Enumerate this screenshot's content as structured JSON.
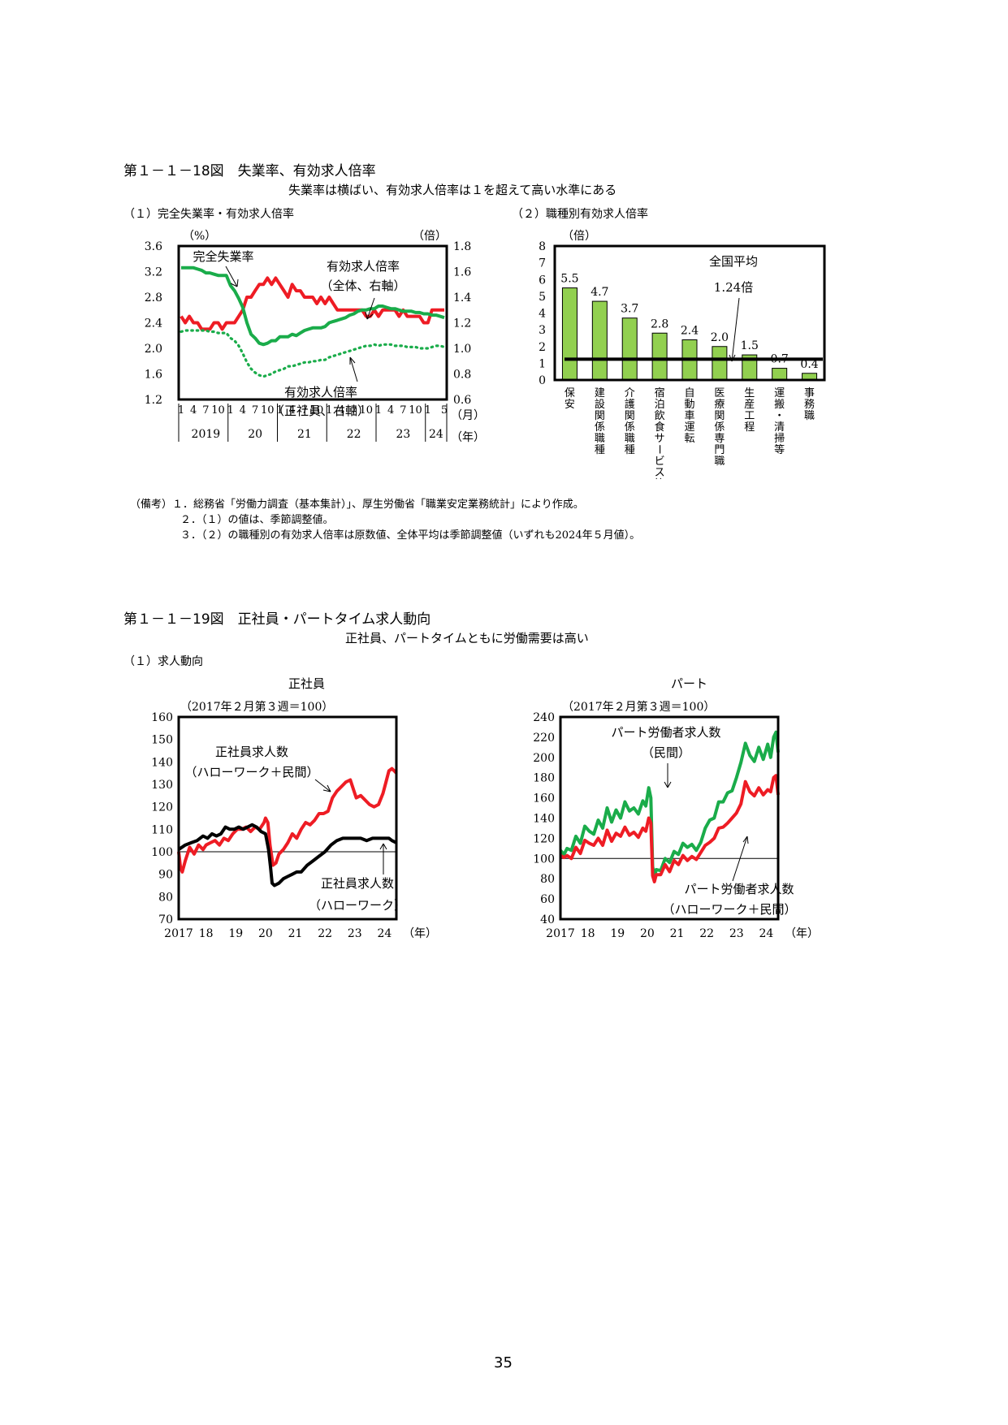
{
  "fig18": {
    "title": "第１－１－18図　失業率、有効求人倍率",
    "subtitle": "失業率は横ばい、有効求人倍率は１を超えて高い水準にある",
    "panel1_title": "（１）完全失業率・有効求人倍率",
    "panel2_title": "（２）職種別有効求人倍率"
  },
  "fig19": {
    "title": "第１－１－19図　正社員・パートタイム求人動向",
    "subtitle": "正社員、パートタイムともに労働需要は高い",
    "panel1_title": "（１）求人動向",
    "left_title": "正社員",
    "right_title": "パート"
  },
  "notes": [
    "（備考）１．総務省「労働力調査（基本集計）」、厚生労働省「職業安定業務統計」により作成。",
    "２．（１）の値は、季節調整値。",
    "３．（２）の職種別の有効求人倍率は原数値、全体平均は季節調整値（いずれも2024年５月値）。"
  ],
  "page_number": "35",
  "colors": {
    "red": "#ee1c24",
    "green": "#1aac4a",
    "black": "#000000",
    "bar": "#92d050"
  },
  "chart_data": [
    {
      "id": "unemployment-jobs-ratio",
      "type": "line",
      "y_left_unit": "（%）",
      "y_right_unit": "（倍）",
      "ylim_left": [
        1.2,
        3.6
      ],
      "ylim_right": [
        0.6,
        1.8
      ],
      "yticks_left": [
        "3.6",
        "3.2",
        "2.8",
        "2.4",
        "2.0",
        "1.6",
        "1.2"
      ],
      "yticks_right": [
        "1.8",
        "1.6",
        "1.4",
        "1.2",
        "1.0",
        "0.8",
        "0.6"
      ],
      "month_ticks": [
        "1",
        "4",
        "7",
        "10",
        "1",
        "4",
        "7",
        "10",
        "1",
        "4",
        "7",
        "10",
        "1",
        "4",
        "7",
        "10",
        "1",
        "4",
        "7",
        "10",
        "1",
        "5"
      ],
      "years": [
        "2019",
        "20",
        "21",
        "22",
        "23",
        "24"
      ],
      "month_unit": "（月）",
      "year_unit": "（年）",
      "x_start": "2019-01",
      "x_end": "2024-05",
      "series": [
        {
          "name": "完全失業率",
          "axis": "left",
          "color": "#ee1c24",
          "values": [
            2.5,
            2.4,
            2.5,
            2.4,
            2.4,
            2.3,
            2.3,
            2.3,
            2.4,
            2.4,
            2.3,
            2.4,
            2.4,
            2.4,
            2.5,
            2.6,
            2.8,
            2.8,
            2.9,
            3.0,
            3.0,
            3.1,
            3.0,
            3.1,
            3.0,
            2.9,
            2.8,
            3.0,
            2.9,
            2.9,
            2.8,
            2.8,
            2.8,
            2.7,
            2.8,
            2.7,
            2.8,
            2.7,
            2.6,
            2.6,
            2.6,
            2.6,
            2.6,
            2.6,
            2.6,
            2.5,
            2.5,
            2.6,
            2.5,
            2.6,
            2.6,
            2.6,
            2.6,
            2.5,
            2.6,
            2.5,
            2.5,
            2.5,
            2.5,
            2.4,
            2.4,
            2.6,
            2.6,
            2.6,
            2.6
          ]
        },
        {
          "name": "有効求人倍率（全体、右軸）",
          "axis": "right",
          "color": "#1aac4a",
          "values": [
            1.63,
            1.63,
            1.63,
            1.63,
            1.62,
            1.61,
            1.59,
            1.59,
            1.58,
            1.57,
            1.57,
            1.57,
            1.49,
            1.45,
            1.39,
            1.32,
            1.2,
            1.11,
            1.08,
            1.04,
            1.03,
            1.04,
            1.06,
            1.06,
            1.09,
            1.09,
            1.09,
            1.11,
            1.1,
            1.12,
            1.14,
            1.15,
            1.16,
            1.16,
            1.16,
            1.17,
            1.2,
            1.21,
            1.22,
            1.23,
            1.24,
            1.26,
            1.27,
            1.29,
            1.3,
            1.3,
            1.31,
            1.31,
            1.33,
            1.33,
            1.32,
            1.31,
            1.31,
            1.3,
            1.29,
            1.29,
            1.29,
            1.28,
            1.28,
            1.27,
            1.27,
            1.26,
            1.26,
            1.25,
            1.24
          ]
        },
        {
          "name": "有効求人倍率（正社員、右軸）",
          "axis": "right",
          "color": "#1aac4a",
          "dotted": true,
          "values": [
            1.13,
            1.14,
            1.14,
            1.14,
            1.14,
            1.14,
            1.14,
            1.13,
            1.13,
            1.12,
            1.12,
            1.12,
            1.08,
            1.06,
            1.02,
            0.96,
            0.89,
            0.84,
            0.81,
            0.79,
            0.78,
            0.79,
            0.8,
            0.82,
            0.83,
            0.84,
            0.86,
            0.86,
            0.87,
            0.88,
            0.89,
            0.89,
            0.9,
            0.9,
            0.91,
            0.91,
            0.93,
            0.94,
            0.95,
            0.96,
            0.97,
            0.98,
            0.99,
            1.0,
            1.01,
            1.02,
            1.02,
            1.03,
            1.02,
            1.03,
            1.03,
            1.03,
            1.02,
            1.02,
            1.02,
            1.01,
            1.01,
            1.01,
            1.0,
            1.0,
            1.0,
            1.01,
            1.02,
            1.02,
            1.01
          ]
        }
      ],
      "annotations": {
        "unemp": "完全失業率",
        "total_1": "有効求人倍率",
        "total_2": "（全体、右軸）",
        "regular_1": "有効求人倍率",
        "regular_2": "（正社員、右軸）"
      }
    },
    {
      "id": "occupation-ratio",
      "type": "bar",
      "y_unit": "（倍）",
      "ylim": [
        0,
        8
      ],
      "yticks": [
        "8",
        "7",
        "6",
        "5",
        "4",
        "3",
        "2",
        "1",
        "0"
      ],
      "categories": [
        "保安",
        "建設関係職種",
        "介護関係職種",
        "宿泊飲食サービス等",
        "自動車運転",
        "医療関係専門職",
        "生産工程",
        "運搬・清掃等",
        "事務職"
      ],
      "values": [
        5.5,
        4.7,
        3.7,
        2.8,
        2.4,
        2.0,
        1.5,
        0.7,
        0.4
      ],
      "value_labels": [
        "5.5",
        "4.7",
        "3.7",
        "2.8",
        "2.4",
        "2.0",
        "1.5",
        "0.7",
        "0.4"
      ],
      "average": 1.24,
      "average_label_1": "全国平均",
      "average_label_2": "1.24倍"
    },
    {
      "id": "regular-job-offers",
      "type": "line",
      "note": "（2017年２月第３週＝100）",
      "ylim": [
        70,
        160
      ],
      "yticks": [
        "160",
        "150",
        "140",
        "130",
        "120",
        "110",
        "100",
        "90",
        "80",
        "70"
      ],
      "xticks": [
        "2017",
        "18",
        "19",
        "20",
        "21",
        "22",
        "23",
        "24"
      ],
      "x_unit": "（年）",
      "x_start": 2017.08,
      "x_end": 2024.4,
      "series": [
        {
          "name": "正社員求人数（ハローワーク＋民間）",
          "color": "#ee1c24",
          "x": [
            2017.08,
            2017.14,
            2017.2,
            2017.3,
            2017.45,
            2017.6,
            2017.75,
            2017.9,
            2018.0,
            2018.15,
            2018.3,
            2018.45,
            2018.6,
            2018.75,
            2018.9,
            2019.05,
            2019.2,
            2019.35,
            2019.5,
            2019.65,
            2019.8,
            2019.95,
            2020.0,
            2020.08,
            2020.15,
            2020.25,
            2020.35,
            2020.45,
            2020.6,
            2020.75,
            2020.9,
            2021.05,
            2021.2,
            2021.35,
            2021.5,
            2021.65,
            2021.8,
            2021.95,
            2022.1,
            2022.25,
            2022.4,
            2022.55,
            2022.7,
            2022.85,
            2022.95,
            2023.05,
            2023.2,
            2023.35,
            2023.5,
            2023.65,
            2023.8,
            2023.95,
            2024.05,
            2024.15,
            2024.25,
            2024.33,
            2024.4
          ],
          "y": [
            100,
            93,
            91,
            96,
            102,
            99,
            103,
            101,
            103,
            104,
            105,
            103,
            106,
            105,
            108,
            110,
            110,
            111,
            109,
            111,
            110,
            113,
            115,
            113,
            103,
            94,
            95,
            99,
            101,
            104,
            108,
            106,
            110,
            113,
            112,
            114,
            117,
            117,
            118,
            124,
            127,
            129,
            131,
            132,
            128,
            124,
            125,
            123,
            121,
            120,
            121,
            126,
            131,
            136,
            137,
            136,
            135
          ]
        },
        {
          "name": "正社員求人数（ハローワーク）",
          "color": "#000000",
          "x": [
            2017.08,
            2017.3,
            2017.5,
            2017.7,
            2017.9,
            2018.05,
            2018.2,
            2018.35,
            2018.5,
            2018.65,
            2018.8,
            2018.95,
            2019.1,
            2019.25,
            2019.4,
            2019.55,
            2019.7,
            2019.85,
            2020.0,
            2020.1,
            2020.17,
            2020.22,
            2020.3,
            2020.45,
            2020.6,
            2020.75,
            2020.9,
            2021.05,
            2021.2,
            2021.4,
            2021.6,
            2021.8,
            2022.0,
            2022.2,
            2022.4,
            2022.6,
            2022.8,
            2023.0,
            2023.2,
            2023.4,
            2023.6,
            2023.8,
            2024.0,
            2024.15,
            2024.25,
            2024.4
          ],
          "y": [
            101,
            103,
            104,
            105,
            107,
            106,
            108,
            107,
            108,
            111,
            110,
            110,
            111,
            110,
            111,
            112,
            111,
            109,
            108,
            101,
            93,
            86,
            85,
            86,
            88,
            89,
            90,
            91,
            91,
            94,
            96,
            98,
            100,
            103,
            105,
            106,
            106,
            106,
            106,
            105,
            106,
            106,
            106,
            106,
            105,
            104
          ]
        }
      ],
      "annotations": {
        "red_1": "正社員求人数",
        "red_2": "（ハローワーク＋民間）",
        "black_1": "正社員求人数",
        "black_2": "（ハローワーク）"
      }
    },
    {
      "id": "part-time-job-offers",
      "type": "line",
      "note": "（2017年２月第３週＝100）",
      "ylim": [
        40,
        240
      ],
      "yticks": [
        "240",
        "220",
        "200",
        "180",
        "160",
        "140",
        "120",
        "100",
        "80",
        "60",
        "40"
      ],
      "xticks": [
        "2017",
        "18",
        "19",
        "20",
        "21",
        "22",
        "23",
        "24"
      ],
      "x_unit": "（年）",
      "x_start": 2017.08,
      "x_end": 2024.4,
      "series": [
        {
          "name": "パート労働者求人数（民間）",
          "color": "#1aac4a",
          "x": [
            2017.08,
            2017.2,
            2017.3,
            2017.45,
            2017.6,
            2017.75,
            2017.9,
            2018.05,
            2018.2,
            2018.35,
            2018.5,
            2018.65,
            2018.8,
            2018.95,
            2019.1,
            2019.25,
            2019.4,
            2019.55,
            2019.7,
            2019.85,
            2019.95,
            2020.05,
            2020.12,
            2020.18,
            2020.24,
            2020.3,
            2020.45,
            2020.6,
            2020.75,
            2020.9,
            2021.05,
            2021.2,
            2021.35,
            2021.5,
            2021.65,
            2021.8,
            2021.95,
            2022.1,
            2022.25,
            2022.4,
            2022.55,
            2022.7,
            2022.85,
            2023.0,
            2023.15,
            2023.3,
            2023.45,
            2023.6,
            2023.75,
            2023.9,
            2024.05,
            2024.15,
            2024.25,
            2024.33,
            2024.4
          ],
          "y": [
            108,
            104,
            110,
            108,
            122,
            115,
            132,
            127,
            124,
            138,
            130,
            150,
            136,
            148,
            140,
            156,
            147,
            150,
            144,
            157,
            152,
            170,
            160,
            92,
            82,
            89,
            88,
            100,
            96,
            107,
            104,
            115,
            111,
            114,
            108,
            116,
            130,
            138,
            140,
            156,
            156,
            165,
            167,
            180,
            195,
            214,
            202,
            196,
            210,
            198,
            213,
            200,
            220,
            225,
            205
          ]
        },
        {
          "name": "パート労働者求人数（ハローワーク＋民間）",
          "color": "#ee1c24",
          "x": [
            2017.08,
            2017.2,
            2017.3,
            2017.45,
            2017.6,
            2017.75,
            2017.9,
            2018.05,
            2018.2,
            2018.35,
            2018.5,
            2018.65,
            2018.8,
            2018.95,
            2019.1,
            2019.25,
            2019.4,
            2019.55,
            2019.7,
            2019.85,
            2019.95,
            2020.05,
            2020.12,
            2020.18,
            2020.24,
            2020.3,
            2020.45,
            2020.6,
            2020.75,
            2020.9,
            2021.05,
            2021.2,
            2021.35,
            2021.5,
            2021.65,
            2021.8,
            2021.95,
            2022.1,
            2022.25,
            2022.4,
            2022.55,
            2022.7,
            2022.85,
            2023.0,
            2023.15,
            2023.3,
            2023.45,
            2023.6,
            2023.75,
            2023.9,
            2024.05,
            2024.15,
            2024.25,
            2024.33,
            2024.4
          ],
          "y": [
            103,
            101,
            103,
            100,
            111,
            105,
            118,
            115,
            113,
            120,
            113,
            128,
            117,
            125,
            122,
            131,
            123,
            126,
            121,
            130,
            127,
            140,
            135,
            83,
            77,
            84,
            84,
            94,
            87,
            98,
            94,
            103,
            98,
            102,
            99,
            106,
            113,
            116,
            120,
            130,
            131,
            135,
            140,
            145,
            154,
            176,
            166,
            162,
            170,
            163,
            168,
            166,
            180,
            182,
            163
          ]
        }
      ],
      "annotations": {
        "green_1": "パート労働者求人数",
        "green_2": "（民間）",
        "red_1": "パート労働者求人数",
        "red_2": "（ハローワーク＋民間）"
      }
    }
  ]
}
